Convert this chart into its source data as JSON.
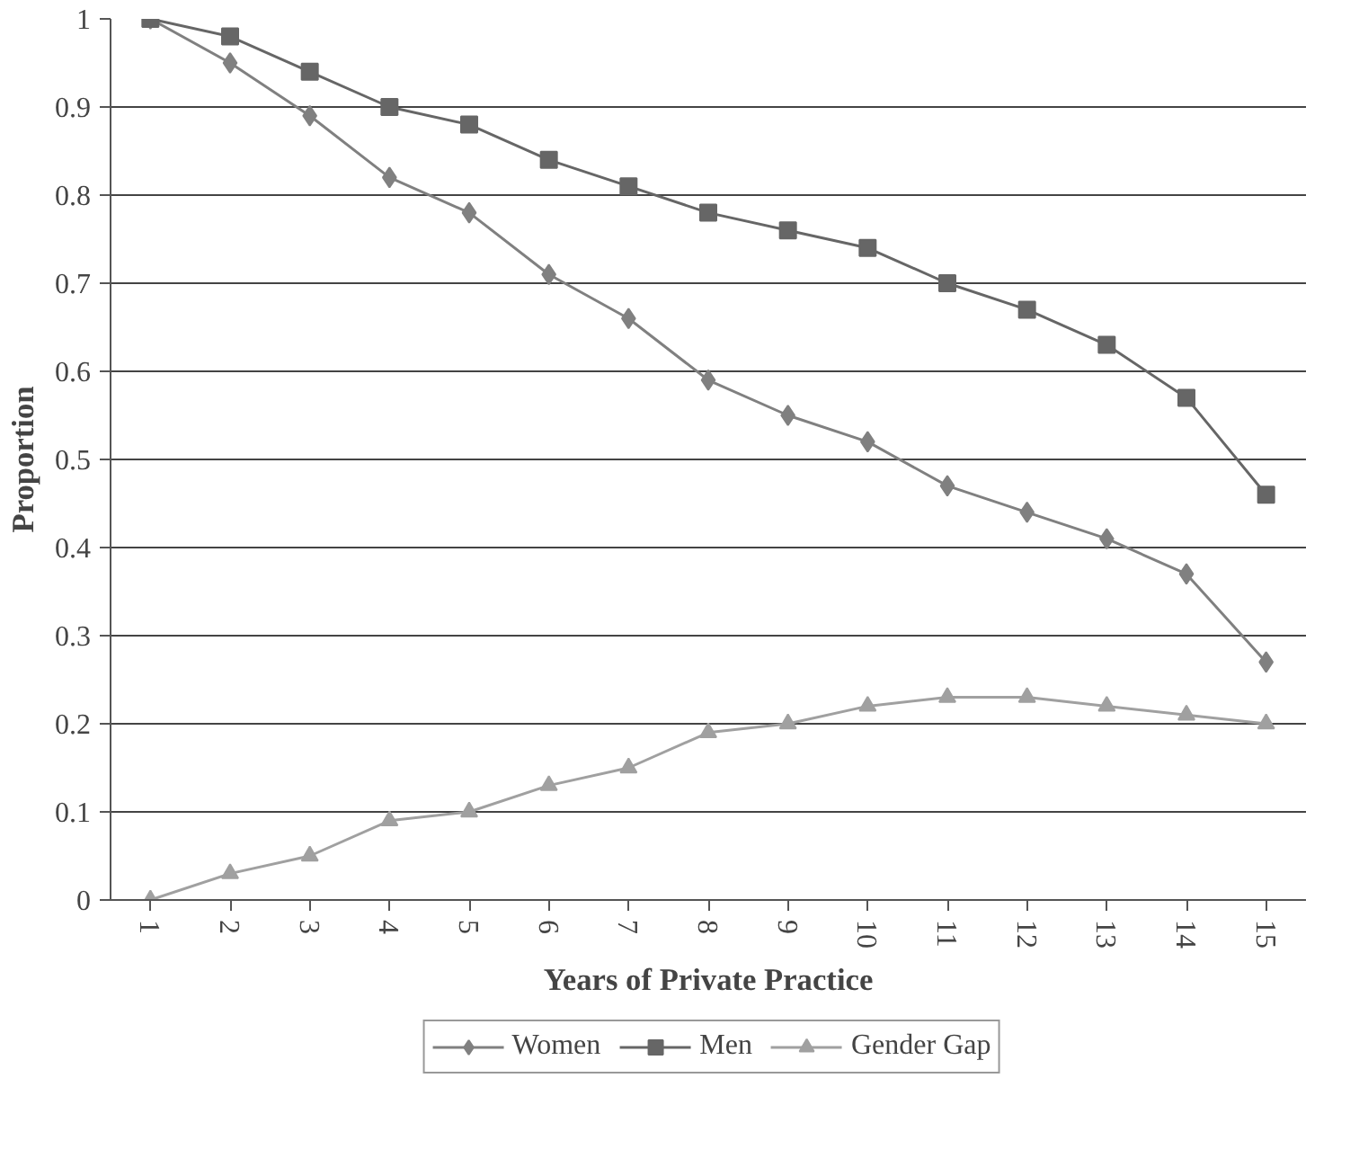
{
  "chart_data": {
    "type": "line",
    "xlabel": "Years of Private Practice",
    "ylabel": "Proportion",
    "categories": [
      "1",
      "2",
      "3",
      "4",
      "5",
      "6",
      "7",
      "8",
      "9",
      "10",
      "11",
      "12",
      "13",
      "14",
      "15"
    ],
    "series": [
      {
        "name": "Women",
        "color": "#808080",
        "marker": "diamond",
        "values": [
          1.0,
          0.95,
          0.89,
          0.82,
          0.78,
          0.71,
          0.66,
          0.59,
          0.55,
          0.52,
          0.47,
          0.44,
          0.41,
          0.37,
          0.27
        ]
      },
      {
        "name": "Men",
        "color": "#666666",
        "marker": "square",
        "values": [
          1.0,
          0.98,
          0.94,
          0.9,
          0.88,
          0.84,
          0.81,
          0.78,
          0.76,
          0.74,
          0.7,
          0.67,
          0.63,
          0.57,
          0.46
        ]
      },
      {
        "name": "Gender Gap",
        "color": "#a0a0a0",
        "marker": "triangle",
        "values": [
          0.0,
          0.03,
          0.05,
          0.09,
          0.1,
          0.13,
          0.15,
          0.19,
          0.2,
          0.22,
          0.23,
          0.23,
          0.22,
          0.21,
          0.2
        ]
      }
    ],
    "ylim": [
      0,
      1
    ],
    "yticks": [
      0,
      0.1,
      0.2,
      0.3,
      0.4,
      0.5,
      0.6,
      0.7,
      0.8,
      0.9,
      1
    ],
    "grid": "y",
    "legend": "bottom",
    "line_style": "solid"
  }
}
